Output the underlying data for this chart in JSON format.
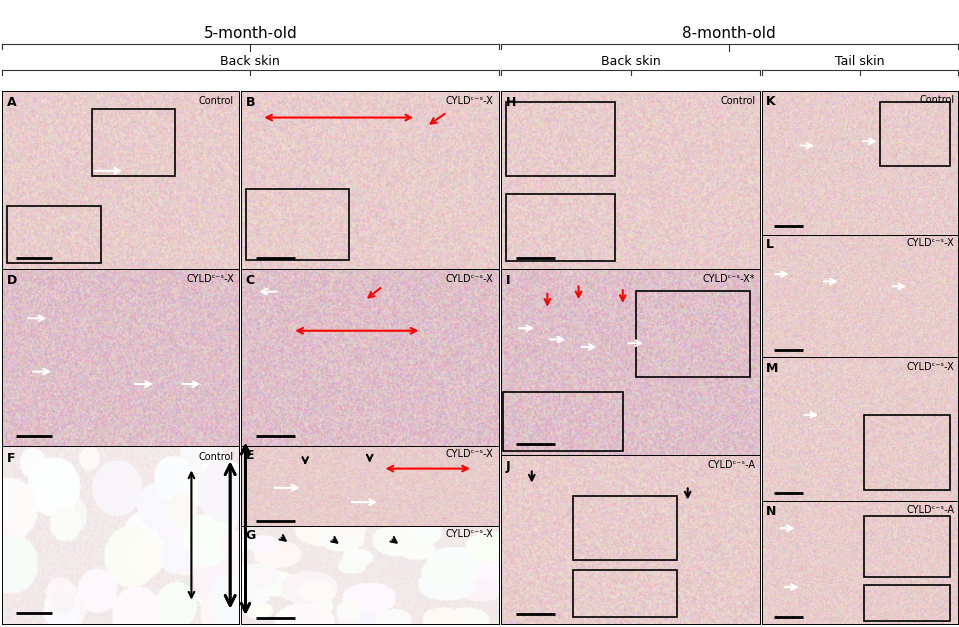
{
  "title_5mo": "5-month-old",
  "title_8mo": "8-month-old",
  "subtitle_back_5mo": "Back skin",
  "subtitle_back_8mo": "Back skin",
  "subtitle_tail_8mo": "Tail skin",
  "panel_annotations": {
    "A": "Control",
    "B": "CYLDᶜ⁻ˢ-X",
    "C": "CYLDᶜ⁻ˢ-X",
    "D": "CYLDᶜ⁻ˢ-X",
    "E": "CYLDᶜ⁻ˢ-X",
    "F": "Control",
    "G": "CYLDᶜ⁻ˢ-X",
    "H": "Control",
    "I": "CYLDᶜ⁻ˢ-X*",
    "J": "CYLDᶜ⁻ˢ-A",
    "K": "Control",
    "L": "CYLDᶜ⁻ˢ-X",
    "M": "CYLDᶜ⁻ˢ-X",
    "N": "CYLDᶜ⁻ˢ-A"
  },
  "fig_bg": "#ffffff",
  "text_color": "#000000",
  "label_fontsize": 9,
  "title_fontsize": 11,
  "annotation_fontsize": 7,
  "panel_label_fontsize": 9,
  "hne_pink": "#f5dede",
  "hne_light": "#faf0f0"
}
